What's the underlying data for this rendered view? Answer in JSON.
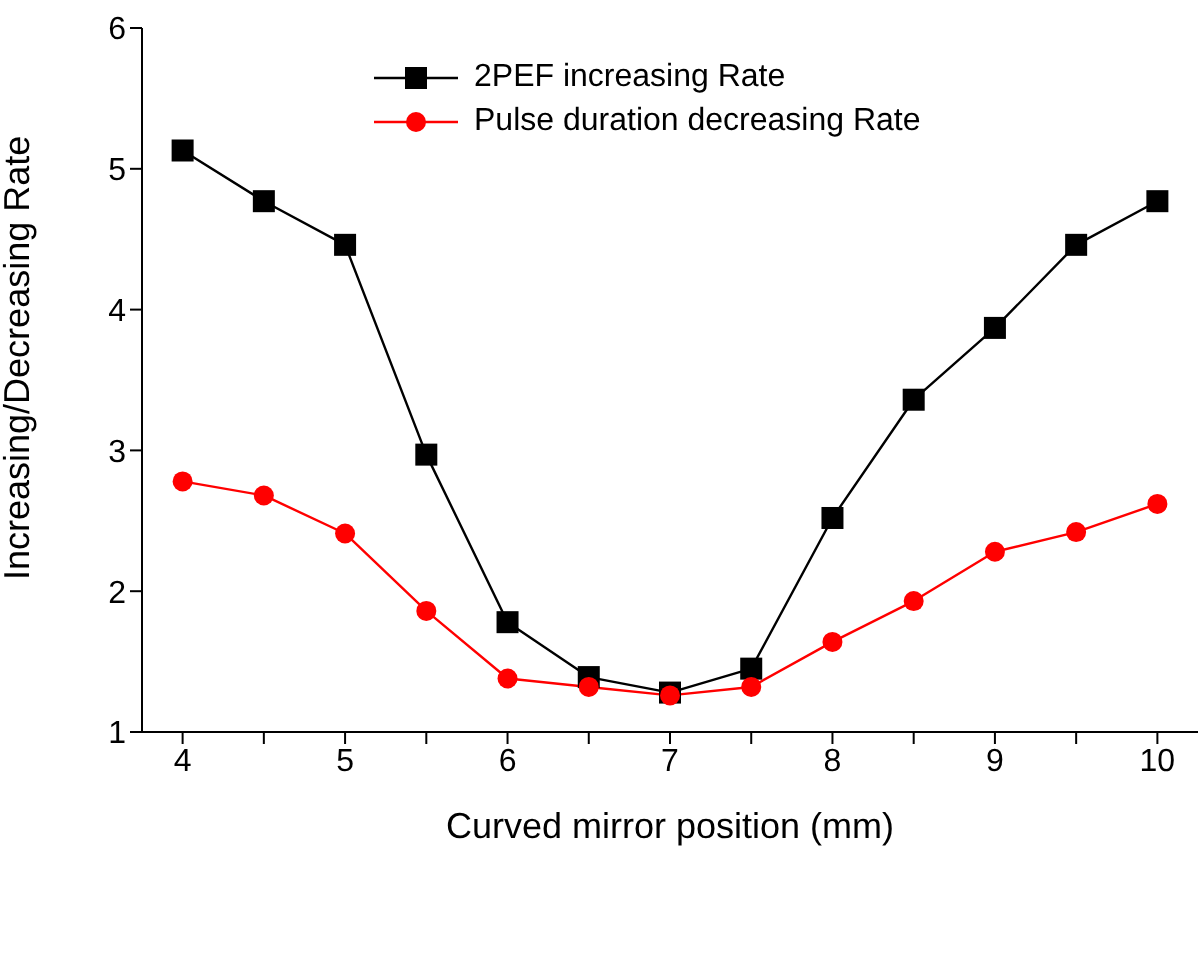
{
  "chart_data": {
    "type": "line",
    "xlabel": "Curved mirror position (mm)",
    "ylabel": "Increasing/Decreasing Rate",
    "x": [
      4,
      4.5,
      5,
      5.5,
      6,
      6.5,
      7,
      7.5,
      8,
      8.5,
      9,
      9.5,
      10
    ],
    "series": [
      {
        "name": "2PEF increasing Rate",
        "color": "#000000",
        "marker": "square",
        "values": [
          5.13,
          4.77,
          4.46,
          2.97,
          1.78,
          1.39,
          1.28,
          1.45,
          2.52,
          3.36,
          3.87,
          4.46,
          4.77
        ]
      },
      {
        "name": "Pulse duration decreasing Rate",
        "color": "#ff0000",
        "marker": "circle",
        "values": [
          2.78,
          2.68,
          2.41,
          1.86,
          1.38,
          1.32,
          1.26,
          1.32,
          1.64,
          1.93,
          2.28,
          2.42,
          2.62
        ]
      }
    ],
    "xlim": [
      3.75,
      10.25
    ],
    "xticks": [
      4,
      {
        "value": 4.5,
        "label": null
      },
      5,
      {
        "value": 5.5,
        "label": null
      },
      6,
      {
        "value": 6.5,
        "label": null
      },
      7,
      {
        "value": 7.5,
        "label": null
      },
      8,
      {
        "value": 8.5,
        "label": null
      },
      9,
      {
        "value": 9.5,
        "label": null
      },
      10
    ],
    "ylim": [
      1,
      6
    ],
    "yticks": [
      1,
      2,
      3,
      4,
      5,
      6
    ],
    "grid": false,
    "legend": "top",
    "line_style": "solid"
  }
}
